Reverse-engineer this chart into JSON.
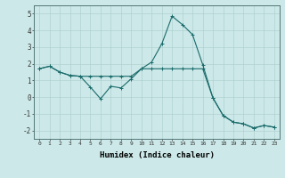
{
  "xlabel": "Humidex (Indice chaleur)",
  "background_color": "#cce8e8",
  "grid_color": "#aacccc",
  "line_color": "#1a6b6b",
  "x_values": [
    0,
    1,
    2,
    3,
    4,
    5,
    6,
    7,
    8,
    9,
    10,
    11,
    12,
    13,
    14,
    15,
    16,
    17,
    18,
    19,
    20,
    21,
    22,
    23
  ],
  "line1_y": [
    1.7,
    1.85,
    1.5,
    1.3,
    1.25,
    0.6,
    -0.1,
    0.65,
    0.55,
    1.1,
    1.7,
    2.1,
    3.2,
    4.85,
    4.35,
    3.75,
    1.95,
    -0.05,
    -1.1,
    -1.5,
    -1.6,
    -1.85,
    -1.7,
    -1.8
  ],
  "line2_y": [
    1.7,
    1.85,
    1.5,
    1.3,
    1.25,
    1.25,
    1.25,
    1.25,
    1.25,
    1.25,
    1.7,
    1.7,
    1.7,
    1.7,
    1.7,
    1.7,
    1.7,
    -0.05,
    -1.1,
    -1.5,
    -1.6,
    -1.85,
    -1.7,
    -1.8
  ],
  "ylim": [
    -2.5,
    5.5
  ],
  "xlim": [
    -0.5,
    23.5
  ],
  "yticks": [
    -2,
    -1,
    0,
    1,
    2,
    3,
    4,
    5
  ],
  "xticks": [
    0,
    1,
    2,
    3,
    4,
    5,
    6,
    7,
    8,
    9,
    10,
    11,
    12,
    13,
    14,
    15,
    16,
    17,
    18,
    19,
    20,
    21,
    22,
    23
  ]
}
